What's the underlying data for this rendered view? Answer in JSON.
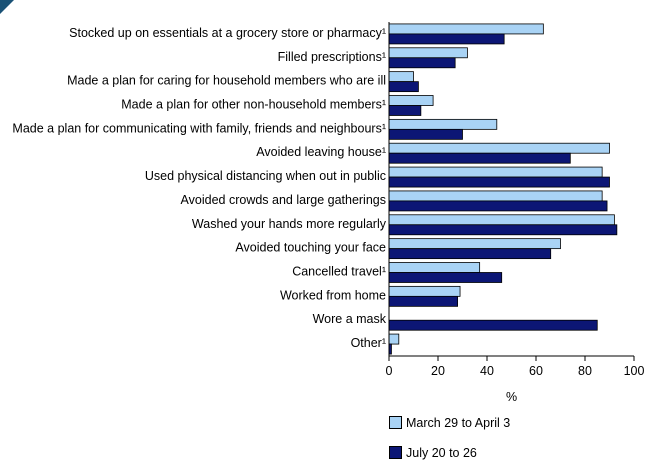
{
  "chart_data": {
    "type": "bar",
    "orientation": "horizontal",
    "categories": [
      "Stocked up on essentials at a grocery store or pharmacy¹",
      "Filled prescriptions¹",
      "Made a plan for caring for household members who are ill",
      "Made a plan for other non-household members¹",
      "Made a plan for communicating with family, friends and neighbours¹",
      "Avoided leaving house¹",
      "Used physical distancing when out in public",
      "Avoided crowds and large gatherings",
      "Washed your hands more regularly",
      "Avoided touching your face",
      "Cancelled travel¹",
      "Worked from home",
      "Wore a mask",
      "Other¹"
    ],
    "series": [
      {
        "name": "March 29 to April 3",
        "color": "#a9d3f5",
        "values": [
          63,
          32,
          10,
          18,
          44,
          90,
          87,
          87,
          92,
          70,
          37,
          29,
          null,
          4
        ]
      },
      {
        "name": "July 20 to 26",
        "color": "#0c1675",
        "values": [
          47,
          27,
          12,
          13,
          30,
          74,
          90,
          89,
          93,
          66,
          46,
          28,
          85,
          1
        ]
      }
    ],
    "xlabel": "%",
    "xlim": [
      0,
      100
    ],
    "xticks": [
      0,
      20,
      40,
      60,
      80,
      100
    ],
    "legend_position": "bottom"
  }
}
